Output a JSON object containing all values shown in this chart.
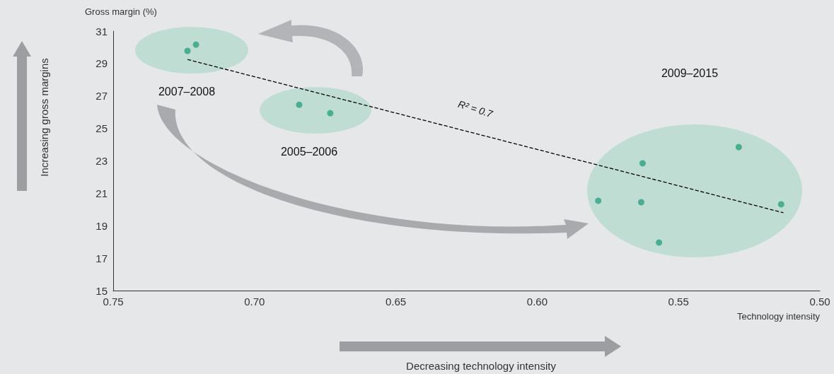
{
  "chart_data": {
    "type": "scatter",
    "xlabel": "Technology intensity",
    "ylabel": "Gross margin (%)",
    "xlim": [
      0.75,
      0.5
    ],
    "xticks": [
      0.75,
      {
        "value": 0.7,
        "label": "0.70"
      },
      0.65,
      {
        "value": 0.6,
        "label": "0.60"
      },
      0.55,
      {
        "value": 0.5,
        "label": "0.50"
      }
    ],
    "ylim": [
      15,
      31
    ],
    "yticks": [
      15,
      17,
      19,
      21,
      23,
      25,
      27,
      29,
      31
    ],
    "grid": false,
    "marker": "circle",
    "series": [
      {
        "type": "scatter",
        "color": "#4aae92",
        "x": [
          0.7237,
          0.7207,
          0.6842,
          0.6732,
          0.5627,
          0.5287,
          0.5784,
          0.5632,
          0.5569,
          0.5137
        ],
        "values": [
          29.78,
          30.17,
          26.46,
          25.94,
          22.85,
          23.85,
          20.54,
          20.45,
          17.96,
          20.32
        ]
      },
      {
        "type": "line",
        "color": "#000000",
        "line_style": "dashed",
        "marker": "none",
        "x": [
          0.7237,
          0.5129
        ],
        "values": [
          29.25,
          19.8
        ]
      }
    ],
    "annotations": [
      "2007–2008",
      "2005–2006",
      "2009–2015",
      "R² = 0.7",
      "Increasing gross margins",
      "Decreasing technology intensity"
    ]
  }
}
